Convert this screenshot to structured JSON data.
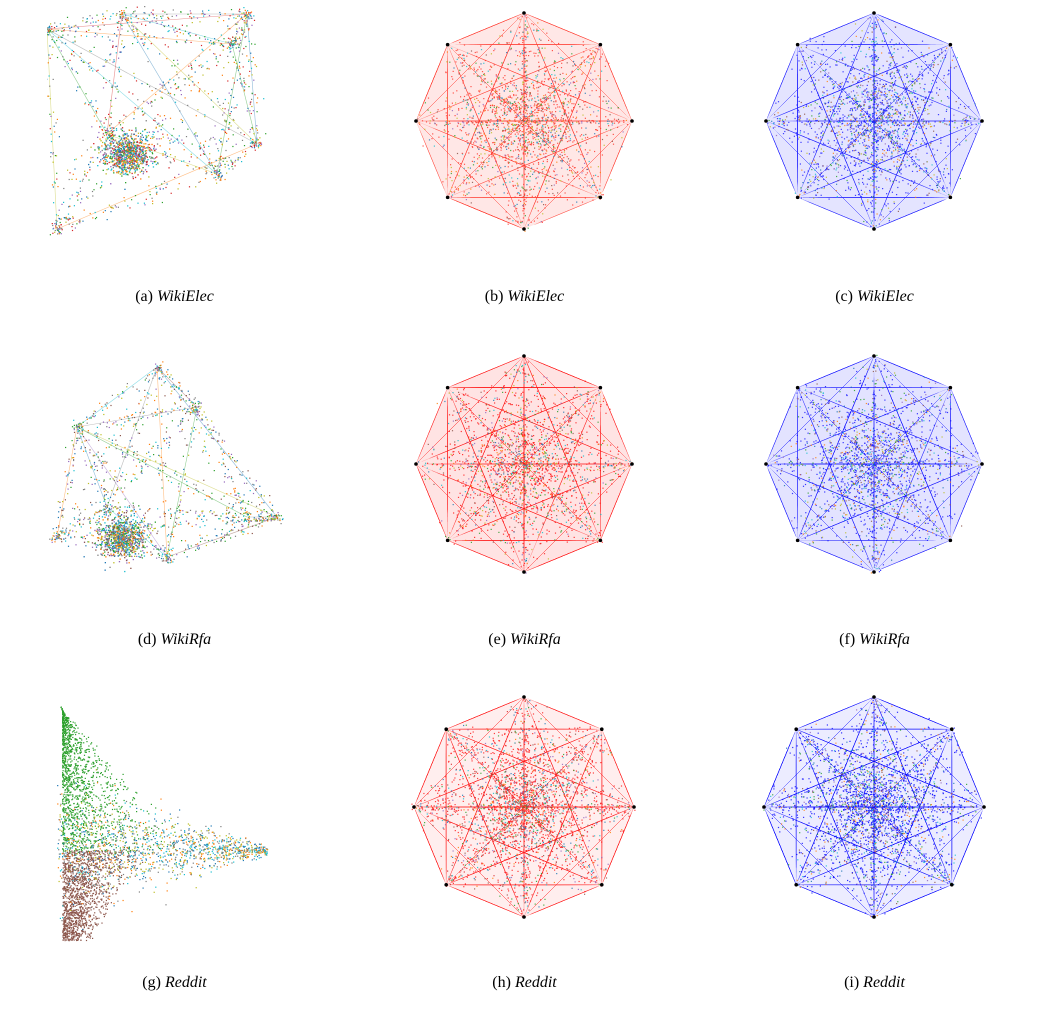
{
  "panels": [
    {
      "id": "a",
      "label": "(a)",
      "dataset": "WikiElec",
      "style": "scatter-3d",
      "seed": 11,
      "palette": [
        "#ff7f0e",
        "#7f7f7f",
        "#17becf",
        "#bcbd22",
        "#1f77b4",
        "#2ca02c",
        "#9467bd",
        "#d62728"
      ]
    },
    {
      "id": "b",
      "label": "(b)",
      "dataset": "WikiElec",
      "style": "octagon",
      "tint": "#ff3b30",
      "seed": 12,
      "palette": [
        "#ff7f0e",
        "#1f77b4",
        "#2ca02c",
        "#9467bd",
        "#bcbd22",
        "#17becf",
        "#8c564b"
      ]
    },
    {
      "id": "c",
      "label": "(c)",
      "dataset": "WikiElec",
      "style": "octagon",
      "tint": "#2222ff",
      "seed": 13,
      "palette": [
        "#ff7f0e",
        "#1f77b4",
        "#2ca02c",
        "#9467bd",
        "#bcbd22",
        "#17becf",
        "#8c564b"
      ]
    },
    {
      "id": "d",
      "label": "(d)",
      "dataset": "WikiRfa",
      "style": "scatter-3d",
      "seed": 21,
      "palette": [
        "#8c564b",
        "#17becf",
        "#2ca02c",
        "#9467bd",
        "#ff7f0e",
        "#bcbd22",
        "#1f77b4",
        "#7f7f7f"
      ]
    },
    {
      "id": "e",
      "label": "(e)",
      "dataset": "WikiRfa",
      "style": "octagon",
      "tint": "#ff1a1a",
      "seed": 22,
      "palette": [
        "#2ca02c",
        "#17becf",
        "#ff7f0e",
        "#9467bd",
        "#8c564b",
        "#bcbd22",
        "#1f77b4"
      ]
    },
    {
      "id": "f",
      "label": "(f)",
      "dataset": "WikiRfa",
      "style": "octagon",
      "tint": "#1a1aff",
      "seed": 23,
      "palette": [
        "#2ca02c",
        "#17becf",
        "#ff7f0e",
        "#9467bd",
        "#8c564b",
        "#bcbd22",
        "#1f77b4"
      ]
    },
    {
      "id": "g",
      "label": "(g)",
      "dataset": "Reddit",
      "style": "triangle",
      "seed": 31,
      "palette": [
        "#2ca02c",
        "#8c564b",
        "#bcbd22",
        "#1f77b4",
        "#ff7f0e",
        "#17becf",
        "#7f7f7f"
      ]
    },
    {
      "id": "h",
      "label": "(h)",
      "dataset": "Reddit",
      "style": "octagon-dense",
      "tint": "#ff2020",
      "seed": 32,
      "palette": [
        "#ff7f0e",
        "#2ca02c",
        "#8c564b",
        "#17becf",
        "#9467bd",
        "#1f77b4",
        "#d62728"
      ]
    },
    {
      "id": "i",
      "label": "(i)",
      "dataset": "Reddit",
      "style": "octagon-dense",
      "tint": "#1010ff",
      "seed": 33,
      "palette": [
        "#ff7f0e",
        "#2ca02c",
        "#8c564b",
        "#17becf",
        "#9467bd",
        "#1f77b4",
        "#1a1aff"
      ]
    }
  ]
}
